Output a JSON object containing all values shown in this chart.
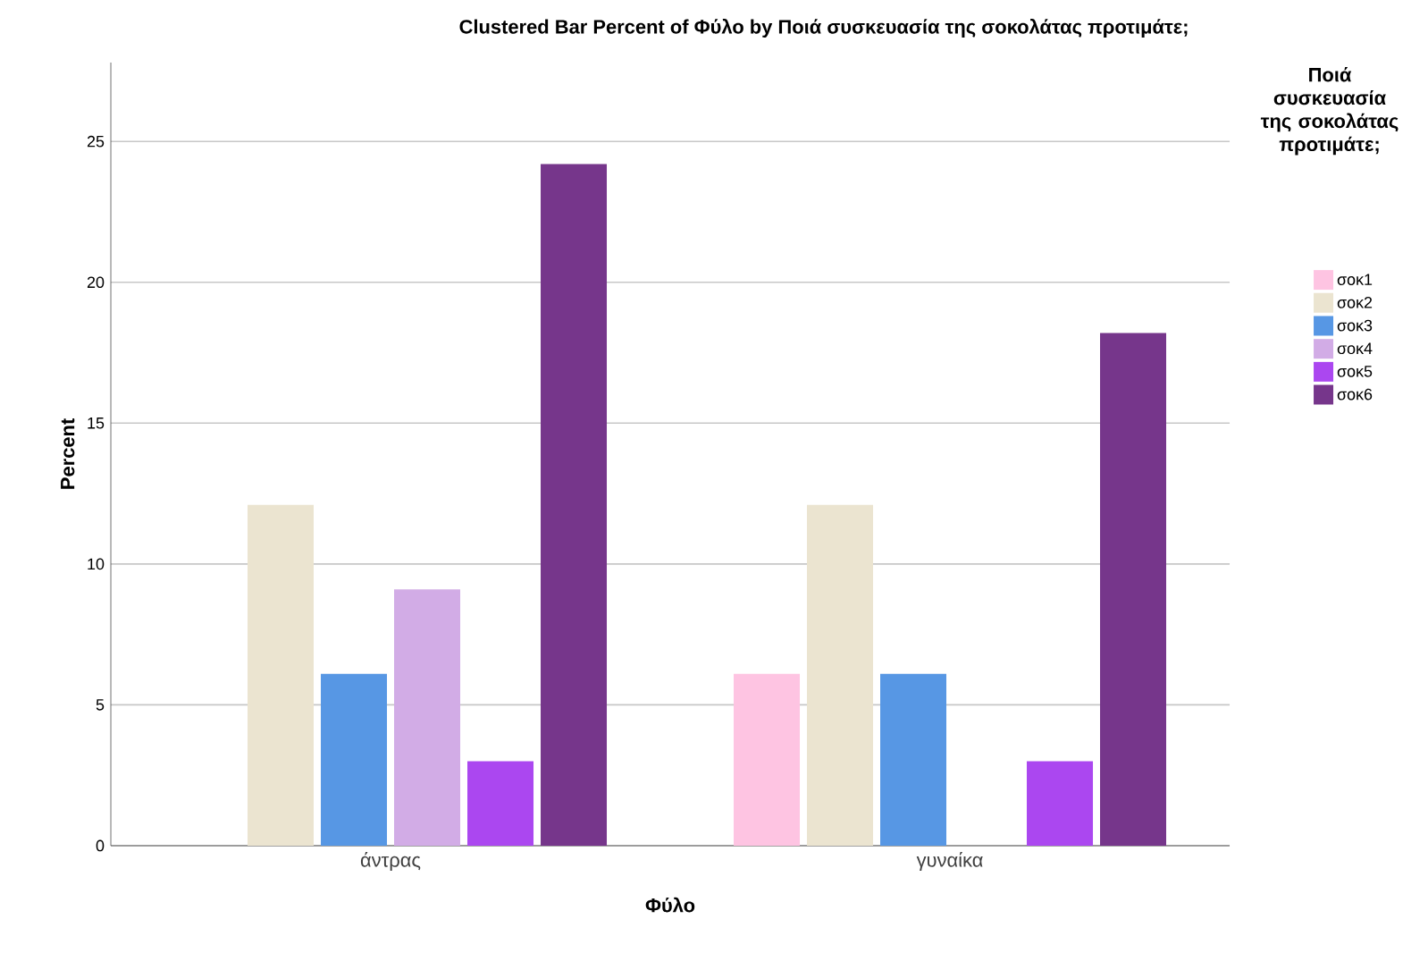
{
  "chart_data": {
    "type": "bar",
    "title": "Clustered Bar Percent of Φύλο by Ποιά συσκευασία της σοκολάτας προτιμάτε;",
    "xlabel": "Φύλο",
    "ylabel": "Percent",
    "legend_title": "Ποιά συσκευασία της σοκολάτας προτιμάτε;",
    "categories": [
      "άντρας",
      "γυναίκα"
    ],
    "series": [
      {
        "name": "σοκ1",
        "color": "#fec4e2",
        "values": [
          null,
          6.1
        ]
      },
      {
        "name": "σοκ2",
        "color": "#ebe4d0",
        "values": [
          12.1,
          12.1
        ]
      },
      {
        "name": "σοκ3",
        "color": "#5797e4",
        "values": [
          6.1,
          6.1
        ]
      },
      {
        "name": "σοκ4",
        "color": "#d2ace6",
        "values": [
          9.1,
          null
        ]
      },
      {
        "name": "σοκ5",
        "color": "#ab47f0",
        "values": [
          3.0,
          3.0
        ]
      },
      {
        "name": "σοκ6",
        "color": "#76368b",
        "values": [
          24.2,
          18.2
        ]
      }
    ],
    "ylim": [
      0,
      27.8
    ],
    "yticks": [
      0,
      5,
      10,
      15,
      20,
      25
    ],
    "grid": "y",
    "legend": "right"
  }
}
